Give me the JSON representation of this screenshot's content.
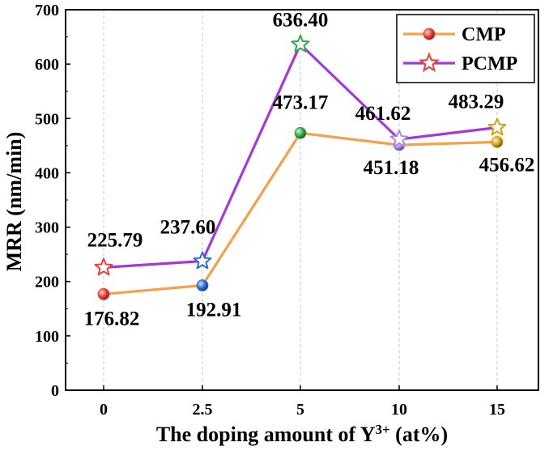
{
  "chart_data": {
    "type": "line",
    "categories": [
      "0",
      "2.5",
      "5",
      "10",
      "15"
    ],
    "xlabel": "The doping amount of Y",
    "xlabel_sup": "3+",
    "xlabel_suffix": " (at%)",
    "ylabel": "MRR (nm/min)",
    "ylim": [
      0,
      700
    ],
    "yticks": [
      0,
      100,
      200,
      300,
      400,
      500,
      600,
      700
    ],
    "grid": "vertical dashed",
    "legend_position": "top-right",
    "series": [
      {
        "name": "CMP",
        "marker": "sphere",
        "line_color": "#f5a04a",
        "values": [
          176.82,
          192.91,
          473.17,
          451.18,
          456.62
        ],
        "labels": [
          "176.82",
          "192.91",
          "473.17",
          "451.18",
          "456.62"
        ],
        "point_colors": [
          "#e8403a",
          "#2f6fd0",
          "#2fa84a",
          "#a98be0",
          "#d4a21a"
        ]
      },
      {
        "name": "PCMP",
        "marker": "star",
        "line_color": "#a638d6",
        "values": [
          225.79,
          237.6,
          636.4,
          461.62,
          483.29
        ],
        "labels": [
          "225.79",
          "237.60",
          "636.40",
          "461.62",
          "483.29"
        ],
        "point_colors": [
          "#e8403a",
          "#2f6fd0",
          "#2fa84a",
          "#a98be0",
          "#d4a21a"
        ]
      }
    ]
  }
}
